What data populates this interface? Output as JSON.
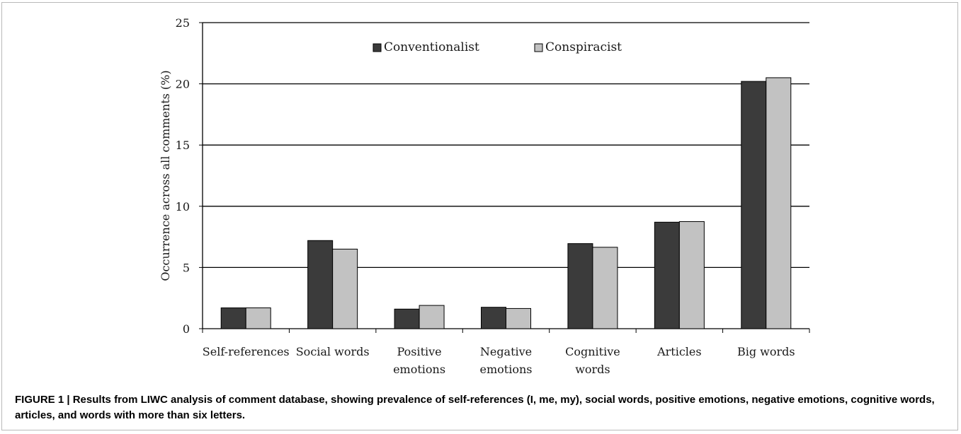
{
  "caption": {
    "label": "FIGURE 1 |",
    "text": "Results from LIWC analysis of comment database, showing prevalence of self-references (I, me, my), social words, positive emotions, negative emotions, cognitive words, articles, and words with more than six letters."
  },
  "chart_data": {
    "type": "bar",
    "title": "",
    "xlabel": "",
    "ylabel": "Occurrence across all comments (%)",
    "ylim": [
      0,
      25
    ],
    "yticks": [
      "0",
      "5",
      "10",
      "15",
      "20",
      "25"
    ],
    "grid": "horizontal",
    "legend_position": "top-center",
    "categories": [
      [
        "Self-references"
      ],
      [
        "Social words"
      ],
      [
        "Positive",
        "emotions"
      ],
      [
        "Negative",
        "emotions"
      ],
      [
        "Cognitive",
        "words"
      ],
      [
        "Articles"
      ],
      [
        "Big words"
      ]
    ],
    "series": [
      {
        "name": "Conventionalist",
        "color": "#3b3b3b",
        "values": [
          1.7,
          7.2,
          1.6,
          1.75,
          6.95,
          8.7,
          20.2
        ]
      },
      {
        "name": "Conspiracist",
        "color": "#c2c2c2",
        "values": [
          1.7,
          6.5,
          1.9,
          1.65,
          6.65,
          8.75,
          20.5
        ]
      }
    ]
  }
}
